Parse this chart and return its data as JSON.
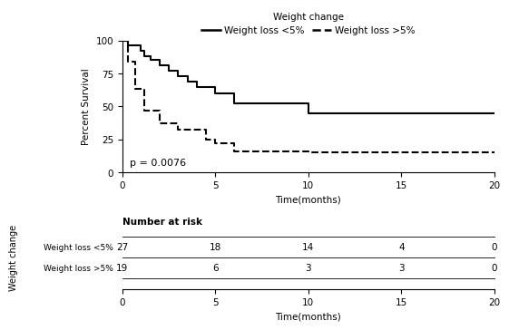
{
  "title": "Weight change",
  "legend_label1": "Weight loss <5%",
  "legend_label2": "Weight loss >5%",
  "ylabel": "Percent Survival",
  "xlabel": "Time(months)",
  "pvalue_text": "p = 0.0076",
  "ylim": [
    0,
    100
  ],
  "xlim": [
    0,
    20
  ],
  "xticks": [
    0,
    5,
    10,
    15,
    20
  ],
  "yticks": [
    0,
    25,
    50,
    75,
    100
  ],
  "km1_times": [
    0,
    0.3,
    0.5,
    1.0,
    1.2,
    1.5,
    2.0,
    2.5,
    3.0,
    3.5,
    4.0,
    5.0,
    6.0,
    7.0,
    8.0,
    9.0,
    10.0,
    11.0,
    12.0,
    13.0,
    14.0,
    15.0,
    20.0,
    22.0
  ],
  "km1_survival": [
    100,
    96,
    96,
    92,
    88,
    85,
    81,
    77,
    73,
    69,
    65,
    60,
    52,
    52,
    52,
    52,
    45,
    45,
    45,
    45,
    45,
    45,
    45,
    45
  ],
  "km2_times": [
    0,
    0.3,
    0.5,
    0.7,
    1.0,
    1.2,
    1.5,
    2.0,
    2.5,
    3.0,
    3.5,
    4.0,
    4.5,
    5.0,
    5.5,
    6.0,
    7.0,
    8.0,
    9.0,
    10.0,
    11.0,
    12.0,
    13.0,
    14.0,
    15.0,
    20.0,
    22.0
  ],
  "km2_survival": [
    100,
    84,
    84,
    63,
    63,
    47,
    47,
    37,
    37,
    32,
    32,
    32,
    25,
    22,
    22,
    16,
    16,
    16,
    16,
    15,
    15,
    15,
    15,
    15,
    15,
    15,
    15
  ],
  "risk_times": [
    0,
    5,
    10,
    15,
    20
  ],
  "risk_label1": "Weight loss <5%",
  "risk_label2": "Weight loss >5%",
  "risk_numbers1": [
    27,
    18,
    14,
    4,
    0
  ],
  "risk_numbers2": [
    19,
    6,
    3,
    3,
    0
  ],
  "color1": "#000000",
  "color2": "#000000",
  "line1_style": "-",
  "line2_style": "--",
  "line_width": 1.5,
  "bg_color": "#ffffff",
  "risk_title": "Number at risk",
  "ylabel_risk": "Weight change"
}
